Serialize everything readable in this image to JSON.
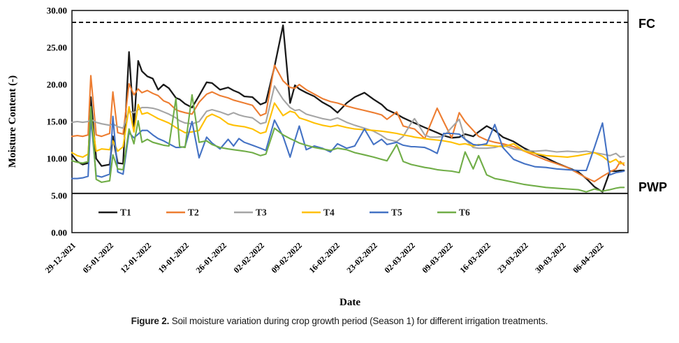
{
  "figure": {
    "caption_prefix": "Figure 2.",
    "caption_text": " Soil moisture variation during crop growth period (Season 1) for different irrigation treatments."
  },
  "chart_data": {
    "type": "line",
    "title": "",
    "xlabel": "Date",
    "ylabel": "Moisture Content (-)",
    "ylim": [
      0,
      30
    ],
    "y_ticks": [
      "0.00",
      "5.00",
      "10.00",
      "15.00",
      "20.00",
      "25.00",
      "30.00"
    ],
    "y_tick_values": [
      0,
      5,
      10,
      15,
      20,
      25,
      30
    ],
    "x_tick_labels": [
      "29-12-2021",
      "05-01-2022",
      "12-01-2022",
      "19-01-2022",
      "26-01-2022",
      "02-02-2022",
      "09-02-2022",
      "16-02-2022",
      "23-02-2022",
      "02-03-2022",
      "09-03-2022",
      "16-03-2022",
      "23-03-2022",
      "30-03-2022",
      "06-04-2022"
    ],
    "x_tick_days": [
      0,
      7,
      14,
      21,
      28,
      35,
      42,
      49,
      56,
      63,
      70,
      77,
      84,
      91,
      98
    ],
    "x_unit": "days since 29-12-2021",
    "x_max_day": 103.2,
    "grid": false,
    "legend_position": "bottom-inside",
    "reference_lines": [
      {
        "label": "FC",
        "value": 28.4,
        "style": "dashed",
        "color": "#1a1a1a"
      },
      {
        "label": "PWP",
        "value": 5.3,
        "style": "solid",
        "color": "#1a1a1a"
      }
    ],
    "x": [
      0,
      1,
      2,
      3,
      3.5,
      4.5,
      5.5,
      7,
      7.6,
      8.5,
      9.5,
      10.6,
      11.5,
      12.3,
      13,
      14,
      15,
      16,
      17,
      18,
      19.3,
      20,
      21,
      22.3,
      23.6,
      25,
      26,
      27.5,
      29,
      30,
      31,
      32,
      33.5,
      35,
      36,
      37.6,
      39.2,
      40.5,
      41.4,
      42.2,
      43.5,
      45,
      46.5,
      48,
      49.3,
      51,
      52.5,
      54.3,
      56,
      57.5,
      58.5,
      60.3,
      61.5,
      63,
      63.6,
      65.5,
      66.5,
      67.8,
      69,
      70.5,
      71.9,
      73,
      74.5,
      75.5,
      77,
      78.5,
      80,
      82,
      84,
      86,
      88,
      90,
      92,
      94,
      95.5,
      97,
      98.5,
      99.9,
      101,
      101.8,
      102.5
    ],
    "series": [
      {
        "name": "T1",
        "color": "#1a1a1a",
        "values": [
          10.5,
          9.6,
          9.2,
          9.4,
          18.3,
          10.0,
          9.0,
          9.2,
          13.0,
          9.4,
          9.3,
          24.4,
          14.3,
          23.2,
          21.8,
          21.1,
          20.8,
          19.3,
          20.0,
          19.5,
          18.2,
          18.0,
          17.4,
          16.9,
          18.5,
          20.3,
          20.2,
          19.3,
          19.6,
          19.2,
          18.9,
          18.4,
          18.3,
          17.3,
          17.6,
          22.4,
          28.0,
          17.5,
          19.9,
          19.4,
          18.9,
          18.4,
          17.6,
          17.0,
          16.2,
          17.5,
          18.3,
          18.9,
          18.0,
          17.3,
          16.6,
          16.0,
          15.5,
          15.0,
          14.8,
          14.2,
          13.9,
          13.5,
          13.1,
          12.8,
          12.9,
          13.3,
          13.0,
          13.6,
          14.4,
          13.8,
          12.9,
          12.3,
          11.4,
          10.7,
          10.1,
          9.4,
          8.8,
          8.2,
          7.3,
          6.2,
          5.5,
          8.3,
          8.3,
          8.4,
          8.4
        ]
      },
      {
        "name": "T2",
        "color": "#ED7D31",
        "values": [
          13.0,
          13.1,
          13.0,
          13.2,
          21.2,
          13.2,
          13.0,
          13.4,
          19.0,
          13.5,
          13.3,
          20.1,
          18.6,
          19.4,
          18.9,
          19.2,
          18.8,
          18.5,
          17.8,
          17.5,
          16.6,
          16.4,
          16.2,
          16.0,
          17.6,
          18.7,
          19.0,
          18.5,
          18.2,
          17.9,
          17.7,
          17.5,
          17.2,
          15.8,
          16.1,
          22.6,
          20.5,
          19.6,
          19.5,
          20.0,
          19.3,
          18.7,
          18.1,
          17.7,
          17.5,
          17.1,
          16.8,
          16.5,
          16.2,
          15.9,
          15.3,
          16.3,
          14.4,
          14.1,
          14.0,
          12.7,
          14.5,
          16.8,
          15.0,
          12.8,
          16.2,
          15.0,
          13.8,
          13.0,
          12.5,
          12.2,
          12.0,
          11.6,
          11.0,
          10.4,
          9.8,
          9.3,
          8.8,
          8.0,
          7.4,
          6.9,
          7.6,
          8.2,
          8.6,
          9.6,
          9.1
        ]
      },
      {
        "name": "T3",
        "color": "#A5A5A5",
        "values": [
          14.9,
          15.0,
          14.9,
          15.0,
          15.3,
          14.9,
          14.7,
          14.5,
          14.7,
          14.3,
          14.1,
          16.4,
          16.2,
          16.6,
          16.9,
          16.9,
          16.8,
          16.6,
          16.3,
          16.0,
          15.5,
          15.1,
          14.8,
          14.7,
          15.0,
          16.4,
          16.6,
          16.3,
          15.9,
          16.2,
          15.9,
          15.7,
          15.5,
          14.7,
          14.9,
          19.8,
          18.0,
          16.9,
          16.5,
          16.6,
          16.0,
          15.7,
          15.4,
          15.2,
          15.5,
          14.9,
          14.5,
          14.1,
          13.7,
          13.1,
          12.6,
          12.3,
          13.0,
          14.8,
          15.4,
          13.2,
          12.9,
          12.9,
          13.0,
          14.2,
          15.3,
          12.6,
          11.5,
          11.4,
          11.4,
          11.5,
          11.8,
          11.3,
          11.1,
          11.0,
          11.1,
          10.9,
          11.0,
          10.9,
          11.0,
          10.8,
          10.6,
          10.4,
          10.7,
          10.2,
          10.3
        ]
      },
      {
        "name": "T4",
        "color": "#FFC000",
        "values": [
          10.8,
          10.4,
          10.2,
          10.6,
          16.0,
          11.0,
          11.3,
          11.2,
          12.4,
          11.0,
          11.6,
          17.0,
          13.6,
          17.3,
          16.0,
          16.2,
          15.8,
          15.4,
          15.1,
          14.8,
          14.2,
          13.9,
          13.5,
          13.6,
          13.8,
          15.6,
          16.0,
          15.5,
          14.7,
          14.5,
          14.4,
          14.3,
          14.0,
          13.4,
          13.6,
          17.5,
          15.8,
          16.4,
          16.2,
          15.5,
          15.2,
          14.8,
          14.5,
          14.3,
          14.5,
          14.2,
          14.0,
          13.9,
          13.8,
          13.7,
          13.6,
          13.4,
          13.2,
          13.0,
          12.9,
          12.7,
          12.6,
          12.5,
          12.4,
          12.2,
          11.9,
          12.0,
          11.7,
          11.9,
          11.8,
          11.7,
          11.6,
          12.0,
          11.0,
          10.7,
          10.4,
          10.3,
          10.2,
          10.4,
          10.6,
          10.8,
          10.3,
          9.5,
          9.9,
          9.3,
          9.4
        ]
      },
      {
        "name": "T5",
        "color": "#4472C4",
        "values": [
          7.3,
          7.3,
          7.4,
          7.6,
          15.5,
          7.7,
          7.5,
          7.9,
          15.7,
          8.2,
          7.9,
          13.5,
          12.8,
          13.3,
          13.8,
          13.8,
          13.2,
          12.7,
          12.4,
          12.0,
          11.5,
          11.5,
          11.6,
          15.0,
          10.1,
          12.9,
          12.1,
          11.3,
          12.6,
          11.7,
          12.7,
          12.2,
          11.8,
          11.4,
          11.1,
          15.2,
          13.0,
          10.2,
          12.5,
          14.4,
          11.2,
          11.7,
          11.4,
          10.9,
          12.0,
          11.4,
          11.7,
          14.0,
          11.9,
          12.6,
          11.9,
          12.2,
          11.8,
          11.6,
          11.6,
          11.5,
          11.2,
          10.7,
          13.4,
          13.4,
          13.3,
          12.6,
          11.9,
          11.8,
          12.0,
          14.6,
          11.5,
          9.9,
          9.3,
          8.9,
          8.8,
          8.6,
          8.5,
          8.4,
          8.4,
          11.5,
          14.8,
          7.8,
          8.1,
          8.2,
          8.3
        ]
      },
      {
        "name": "T6",
        "color": "#70AD47",
        "values": [
          9.7,
          9.5,
          9.4,
          9.6,
          17.0,
          7.2,
          6.8,
          7.0,
          10.5,
          8.6,
          8.5,
          14.0,
          12.0,
          15.1,
          12.2,
          12.6,
          12.2,
          12.0,
          11.8,
          11.7,
          18.1,
          11.6,
          11.5,
          18.6,
          12.2,
          12.4,
          11.9,
          11.5,
          11.3,
          11.2,
          11.1,
          11.0,
          10.8,
          10.4,
          10.6,
          14.1,
          13.2,
          12.7,
          12.4,
          12.1,
          11.8,
          11.5,
          11.3,
          11.1,
          11.4,
          11.2,
          10.8,
          10.5,
          10.2,
          9.9,
          9.7,
          11.9,
          9.6,
          9.2,
          9.1,
          8.8,
          8.7,
          8.5,
          8.4,
          8.3,
          8.1,
          10.9,
          8.6,
          10.4,
          7.8,
          7.3,
          7.1,
          6.8,
          6.5,
          6.3,
          6.1,
          6.0,
          5.9,
          5.8,
          5.5,
          5.9,
          5.6,
          5.8,
          6.0,
          6.1,
          6.1
        ]
      }
    ],
    "legend": [
      "T1",
      "T2",
      "T3",
      "T4",
      "T5",
      "T6"
    ]
  }
}
